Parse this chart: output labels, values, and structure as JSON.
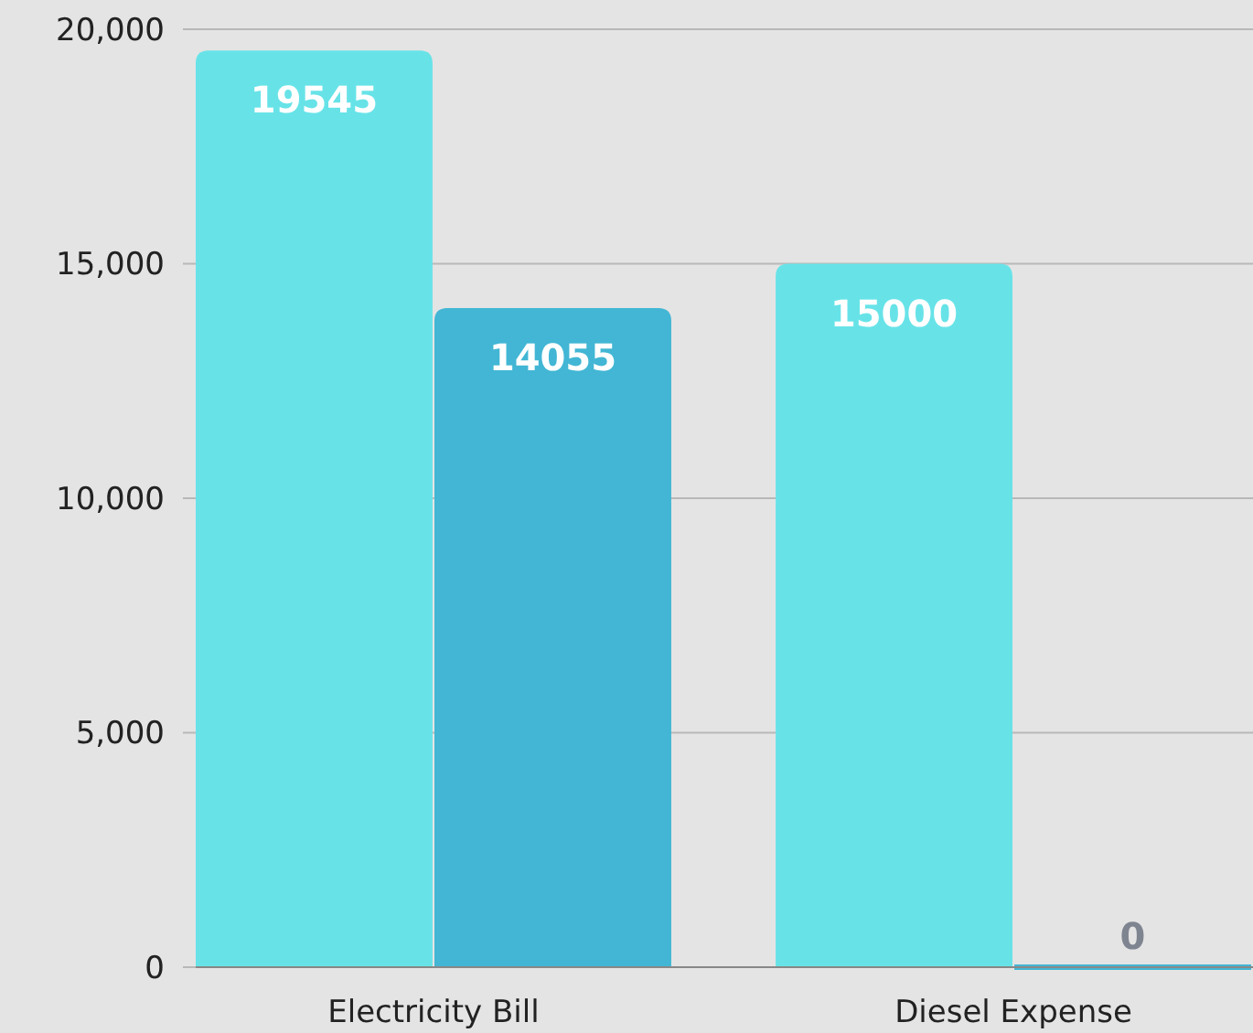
{
  "chart_data": {
    "type": "bar",
    "categories": [
      "Electricity Bill",
      "Diesel Expense"
    ],
    "series": [
      {
        "color": "#67e3e8",
        "values": [
          19545,
          15000
        ]
      },
      {
        "color": "#42b6d4",
        "values": [
          14055,
          0
        ]
      }
    ],
    "ylim": [
      0,
      20000
    ],
    "yticks": [
      {
        "value": 0,
        "label": "0"
      },
      {
        "value": 5000,
        "label": "5,000"
      },
      {
        "value": 10000,
        "label": "10,000"
      },
      {
        "value": 15000,
        "label": "15,000"
      },
      {
        "value": 20000,
        "label": "20,000"
      }
    ],
    "grid": "y",
    "data_labels": true
  }
}
